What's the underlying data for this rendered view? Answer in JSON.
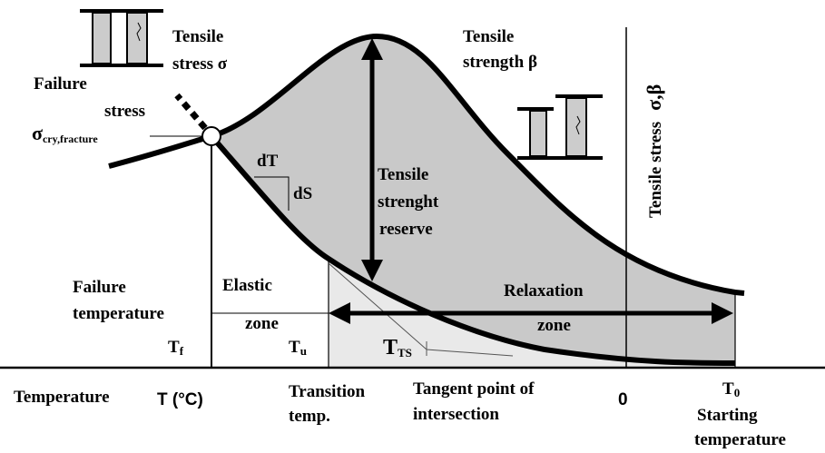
{
  "labels": {
    "tensile_stress": [
      "Tensile",
      "stress σ"
    ],
    "failure_stress": [
      "Failure",
      "stress"
    ],
    "failure_stress_symbol": {
      "main": "σ",
      "sub": "cry,fracture"
    },
    "tensile_strength": [
      "Tensile",
      "strength β"
    ],
    "slope_dt": "dT",
    "slope_ds": "dS",
    "reserve": [
      "Tensile",
      "strenght",
      "reserve"
    ],
    "y_axis": {
      "text": "Tensile stress",
      "symbol": "σ,β"
    },
    "failure_temperature": [
      "Failure",
      "temperature"
    ],
    "elastic_zone": [
      "Elastic",
      "zone"
    ],
    "relaxation_zone": [
      "Relaxation",
      "zone"
    ],
    "t_f": {
      "main": "T",
      "sub": "f"
    },
    "t_u": {
      "main": "T",
      "sub": "u"
    },
    "t_ts": {
      "main": "T",
      "sub": "TS"
    },
    "x_axis": {
      "text": "Temperature",
      "symbol": "T (°C)"
    },
    "transition": [
      "Transition",
      "temp."
    ],
    "tangent": [
      "Tangent point of",
      "intersection"
    ],
    "zero": "0",
    "t_0": {
      "main": "T",
      "sub": "0"
    },
    "starting": [
      "Starting",
      "temperature"
    ]
  }
}
